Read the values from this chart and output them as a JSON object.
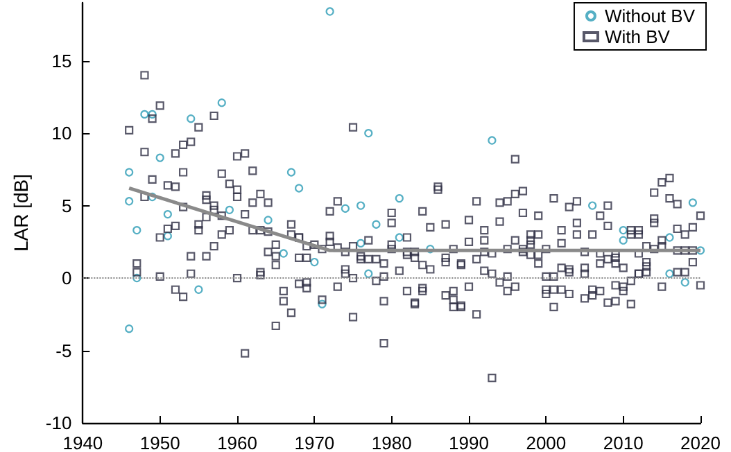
{
  "chart_data": {
    "type": "scatter",
    "ylabel": "LAR [dB]",
    "xlim": [
      1940,
      2020
    ],
    "xticks": [
      1940,
      1950,
      1960,
      1970,
      1980,
      1990,
      2000,
      2010,
      2020
    ],
    "ylim": [
      -10,
      19
    ],
    "yticks": [
      -10,
      -5,
      0,
      5,
      10,
      15
    ],
    "grid": false,
    "legend": "top right",
    "ref_lines": [
      {
        "axis": "y",
        "value": 0,
        "color": "#888888",
        "line_style": "dotted"
      }
    ],
    "series": [
      {
        "name": "Without BV",
        "color": "#2a9bb5",
        "marker": "circle",
        "x": [
          1946,
          1946,
          1946,
          1947,
          1947,
          1948,
          1949,
          1949,
          1950,
          1951,
          1951,
          1954,
          1955,
          1958,
          1959,
          1964,
          1966,
          1967,
          1968,
          1972,
          1977,
          1993,
          1974,
          1976,
          1981,
          1978,
          1981,
          1976,
          1985,
          1970,
          1977,
          1971,
          2006,
          2019,
          2010,
          2010,
          2016,
          2020,
          2016,
          2018
        ],
        "values": [
          -3.5,
          5.3,
          7.3,
          3.3,
          0,
          11.3,
          11.3,
          5.6,
          8.3,
          4.4,
          2.9,
          11,
          -0.8,
          12.1,
          4.7,
          4,
          1.7,
          7.3,
          6.2,
          18.4,
          10,
          9.5,
          4.8,
          5,
          5.5,
          3.7,
          2.8,
          2.4,
          2,
          1.1,
          0.3,
          -1.8,
          5,
          5.2,
          3.3,
          2.6,
          2.8,
          1.9,
          0.3,
          -0.3
        ]
      },
      {
        "name": "With BV",
        "color": "#2e2e44",
        "marker": "square",
        "x": [
          1948,
          1946,
          1950,
          1949,
          1955,
          1957,
          1948,
          1952,
          1953,
          1954,
          1960,
          1961,
          1953,
          1958,
          1962,
          1949,
          1951,
          1952,
          1959,
          1960,
          1948,
          1960,
          1956,
          1956,
          1963,
          1962,
          1964,
          1953,
          1957,
          1957,
          1956,
          1958,
          1961,
          1955,
          1955,
          1952,
          1951,
          1950,
          1958,
          1959,
          1962,
          1963,
          1964,
          1957,
          1954,
          1956,
          1964,
          1965,
          1965,
          1967,
          1967,
          1968,
          1968,
          1965,
          1947,
          1947,
          1950,
          1954,
          1960,
          1963,
          1963,
          1952,
          1953,
          1966,
          1966,
          1967,
          1965,
          1961,
          1968,
          1975,
          1986,
          1986,
          1973,
          1972,
          1980,
          1984,
          1980,
          1991,
          1994,
          1994,
          1990,
          1987,
          1985,
          1992,
          1968,
          1972,
          1972,
          1970,
          1969,
          1969,
          1971,
          1973,
          1974,
          1975,
          1977,
          1976,
          1976,
          1977,
          1978,
          1979,
          1980,
          1980,
          1981,
          1982,
          1982,
          1982,
          1983,
          1983,
          1984,
          1985,
          1987,
          1987,
          1988,
          1989,
          1989,
          1990,
          1991,
          1992,
          1992,
          1992,
          1993,
          1993,
          1994,
          1974,
          1974,
          1975,
          1979,
          1978,
          1969,
          1969,
          1973,
          1971,
          1982,
          1983,
          1983,
          1984,
          1984,
          1987,
          1988,
          1988,
          1988,
          1989,
          1989,
          1990,
          1991,
          1979,
          1975,
          1979,
          1993,
          1996,
          2016,
          2015,
          2014,
          1997,
          1996,
          1995,
          2001,
          2003,
          2004,
          2008,
          2016,
          2017,
          1997,
          1999,
          2007,
          2020,
          2004,
          2008,
          2014,
          2014,
          2019,
          2017,
          2002,
          2004,
          2006,
          2011,
          2012,
          2011,
          2012,
          2018,
          2015,
          1998,
          1998,
          1999,
          1998,
          1996,
          1995,
          1997,
          1997,
          2000,
          2002,
          2005,
          2007,
          2009,
          2012,
          2013,
          2014,
          2015,
          2017,
          2018,
          2019,
          1999,
          1998,
          1999,
          2007,
          2008,
          2009,
          2009,
          2010,
          2002,
          2003,
          2003,
          2005,
          2005,
          2013,
          2013,
          2013,
          2012,
          2019,
          2018,
          2017,
          1995,
          1996,
          1995,
          2001,
          2000,
          2000,
          2001,
          2000,
          2002,
          2003,
          2001,
          2005,
          2006,
          2006,
          2007,
          2009,
          2010,
          2010,
          2011,
          2011,
          2008,
          2009,
          2012,
          2015,
          2020
        ],
        "values": [
          14,
          10.2,
          11.9,
          11,
          10.4,
          11.2,
          8.7,
          8.6,
          9.2,
          9.4,
          8.4,
          8.6,
          7.3,
          7.2,
          7.4,
          6.8,
          6.4,
          6.3,
          6.5,
          6.1,
          5.6,
          5.6,
          5.7,
          5.4,
          5.8,
          5.2,
          5.2,
          4.9,
          5,
          4.7,
          4.2,
          4.3,
          4.4,
          3.7,
          3.3,
          3.6,
          3.4,
          2.8,
          3,
          3.3,
          3.3,
          3.3,
          3.2,
          2.2,
          1.5,
          1.5,
          1.8,
          2.3,
          1.5,
          3.7,
          3,
          2.8,
          1.4,
          0.9,
          1,
          0.4,
          0.1,
          0.3,
          0,
          0.4,
          0.2,
          -0.8,
          -1.3,
          -0.9,
          -1.6,
          -2.4,
          -3.3,
          -5.2,
          -0.4,
          10.4,
          6.3,
          6.1,
          5.3,
          4.6,
          4.5,
          4.6,
          3.8,
          5.3,
          5.2,
          3.9,
          4,
          3.7,
          3.5,
          3.3,
          2.8,
          2.9,
          2.5,
          2.3,
          2.2,
          1.4,
          2,
          2.1,
          1.8,
          2.2,
          2.6,
          1.5,
          1.3,
          1.3,
          1.3,
          1,
          2.3,
          2,
          0.5,
          2.8,
          1.8,
          1.6,
          1.8,
          1.4,
          0.9,
          0.6,
          1.4,
          1.1,
          2,
          1,
          0.9,
          2.5,
          1.3,
          2.6,
          1.8,
          0.5,
          1.7,
          0.3,
          -0.3,
          0.6,
          0.3,
          0,
          0.1,
          -0.2,
          -0.3,
          -0.7,
          -0.6,
          -1.5,
          -0.9,
          -1.7,
          -1.8,
          -0.7,
          -0.9,
          -1.2,
          -0.9,
          -1.5,
          -2,
          -1.9,
          -2,
          -0.6,
          -2.5,
          -1.6,
          -2.7,
          -4.5,
          -6.9,
          8.2,
          6.9,
          6.6,
          5.9,
          6,
          5.8,
          5.3,
          5.5,
          4.9,
          5.3,
          5,
          5.5,
          5.1,
          4.5,
          4.3,
          4.3,
          4.3,
          3.8,
          3.6,
          4.1,
          3.8,
          3.5,
          3.4,
          3.3,
          3,
          3,
          3.3,
          3.3,
          3,
          3,
          3,
          2.6,
          3,
          2.6,
          3,
          2.3,
          2.6,
          2,
          2,
          1.8,
          2,
          2.4,
          1.8,
          1.7,
          1.7,
          1.7,
          2.2,
          2,
          2.2,
          1.9,
          1.9,
          1.9,
          1.6,
          1.6,
          1,
          1,
          1.3,
          1.4,
          1,
          0.7,
          0.7,
          0.6,
          0.4,
          0.7,
          0.3,
          1.1,
          0.8,
          0.4,
          0.3,
          1.1,
          0.4,
          0.4,
          0.1,
          -0.6,
          -0.9,
          0.1,
          0.1,
          -0.8,
          -0.8,
          -1.1,
          -0.8,
          -1.1,
          -2,
          -1.4,
          -1.2,
          -0.8,
          -0.9,
          -0.5,
          -0.9,
          -0.6,
          -0.2,
          -1.8,
          -1.7,
          -1.6,
          0.3,
          -0.6,
          -0.5
        ]
      },
      {
        "type": "line",
        "color": "#8a8a8a",
        "x": [
          1946,
          1972,
          2020
        ],
        "values": [
          6.2,
          1.9,
          1.9
        ]
      }
    ]
  }
}
